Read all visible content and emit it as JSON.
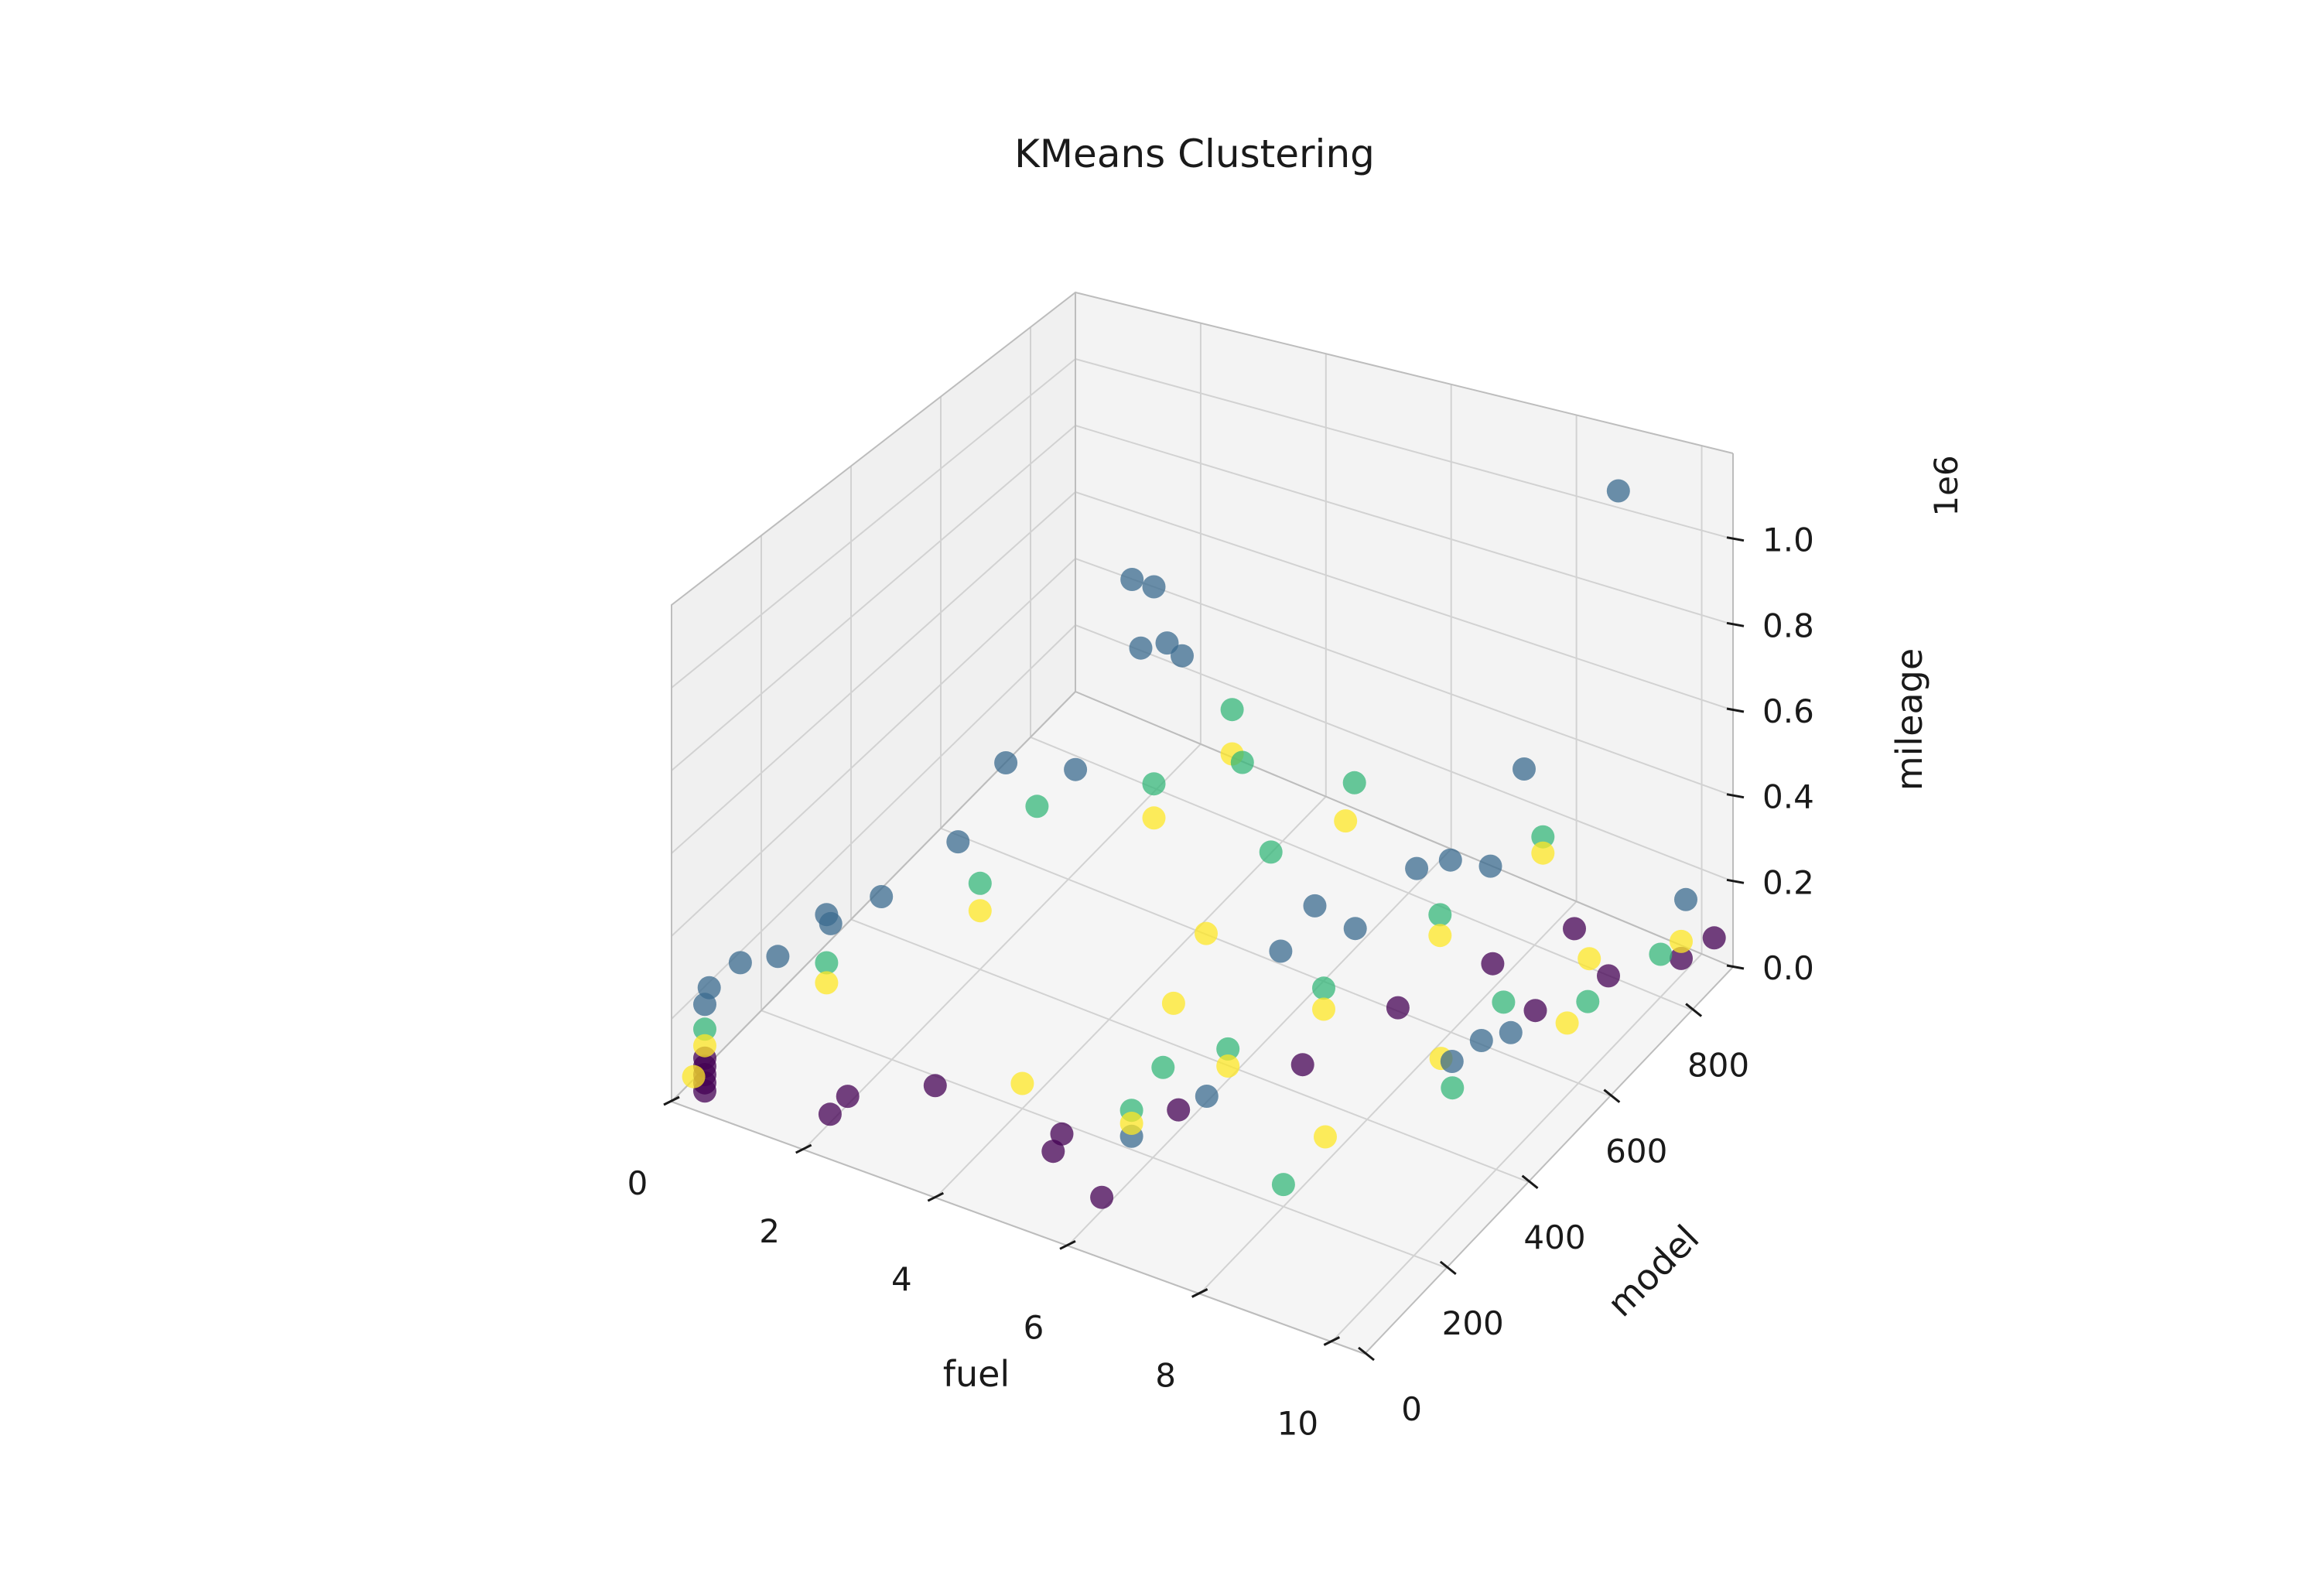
{
  "chart_data": {
    "type": "scatter",
    "projection": "3d",
    "title": "KMeans Clustering",
    "xlabel": "fuel",
    "ylabel": "model",
    "zlabel": "mileage",
    "z_offset_text": "1e6",
    "xlim": [
      0,
      10.5
    ],
    "ylim": [
      0,
      900
    ],
    "zlim": [
      0,
      1.2
    ],
    "xticks": [
      "0",
      "2",
      "4",
      "6",
      "8",
      "10"
    ],
    "yticks": [
      "0",
      "200",
      "400",
      "600",
      "800"
    ],
    "zticks": [
      "0.0",
      "0.2",
      "0.4",
      "0.6",
      "0.8",
      "1.0"
    ],
    "grid": true,
    "cluster_colors": [
      "#440154",
      "#3b6b8f",
      "#35b779",
      "#fde725"
    ],
    "series": [
      {
        "values": [
          [
            0.3,
            30,
            0.01
          ],
          [
            0.3,
            30,
            0.03
          ],
          [
            0.3,
            30,
            0.05
          ],
          [
            0.3,
            30,
            0.07
          ],
          [
            0.3,
            30,
            0.09
          ],
          [
            2,
            60,
            0.02
          ],
          [
            2,
            100,
            0.02
          ],
          [
            3,
            150,
            0.05
          ],
          [
            5,
            120,
            0.04
          ],
          [
            5,
            140,
            0.06
          ],
          [
            6,
            80,
            0.03
          ],
          [
            6,
            260,
            0.05
          ],
          [
            7,
            400,
            0.07
          ],
          [
            7.5,
            550,
            0.08
          ],
          [
            8,
            700,
            0.06
          ],
          [
            8.5,
            820,
            0.05
          ],
          [
            9.5,
            750,
            0.07
          ],
          [
            10,
            850,
            0.04
          ],
          [
            10.2,
            900,
            0.05
          ],
          [
            9,
            650,
            0.06
          ]
        ]
      },
      {
        "values": [
          [
            3,
            600,
            0.85
          ],
          [
            3,
            650,
            0.78
          ],
          [
            3,
            620,
            0.65
          ],
          [
            3,
            680,
            0.6
          ],
          [
            2.4,
            400,
            0.55
          ],
          [
            2,
            350,
            0.38
          ],
          [
            1.5,
            250,
            0.32
          ],
          [
            1,
            200,
            0.3
          ],
          [
            0.5,
            80,
            0.28
          ],
          [
            0.3,
            40,
            0.25
          ],
          [
            0.3,
            30,
            0.22
          ],
          [
            0.8,
            120,
            0.27
          ],
          [
            1.2,
            180,
            0.31
          ],
          [
            2.8,
            500,
            0.45
          ],
          [
            3.1,
            700,
            0.55
          ],
          [
            6,
            500,
            0.18
          ],
          [
            6.5,
            600,
            0.16
          ],
          [
            7,
            750,
            0.2
          ],
          [
            7.3,
            800,
            0.15
          ],
          [
            7.5,
            850,
            0.35
          ],
          [
            6.2,
            550,
            0.25
          ],
          [
            6.8,
            700,
            0.22
          ],
          [
            10.4,
            800,
            0.25
          ],
          [
            9,
            520,
            0.12
          ],
          [
            8.8,
            480,
            0.1
          ],
          [
            9.2,
            560,
            0.11
          ],
          [
            6,
            150,
            0.1
          ],
          [
            6.5,
            250,
            0.12
          ],
          [
            9,
            850,
            1.1
          ]
        ]
      },
      {
        "values": [
          [
            0.3,
            30,
            0.16
          ],
          [
            1,
            200,
            0.18
          ],
          [
            2,
            400,
            0.22
          ],
          [
            3,
            650,
            0.26
          ],
          [
            3.2,
            800,
            0.3
          ],
          [
            2.2,
            500,
            0.32
          ],
          [
            3.5,
            780,
            0.2
          ],
          [
            6,
            150,
            0.16
          ],
          [
            6.5,
            300,
            0.18
          ],
          [
            7,
            450,
            0.2
          ],
          [
            7.5,
            650,
            0.2
          ],
          [
            7.8,
            850,
            0.2
          ],
          [
            4.5,
            700,
            0.12
          ],
          [
            5.5,
            300,
            0.08
          ],
          [
            8.5,
            650,
            0.05
          ],
          [
            9.5,
            700,
            0.06
          ],
          [
            9,
            450,
            0.08
          ],
          [
            10,
            800,
            0.1
          ],
          [
            8,
            200,
            0.05
          ],
          [
            4.8,
            850,
            0.15
          ]
        ]
      },
      {
        "values": [
          [
            0.3,
            30,
            0.12
          ],
          [
            1,
            200,
            0.13
          ],
          [
            2,
            400,
            0.15
          ],
          [
            3,
            650,
            0.17
          ],
          [
            3.2,
            800,
            0.18
          ],
          [
            0.2,
            20,
            0.05
          ],
          [
            6,
            150,
            0.13
          ],
          [
            6.5,
            300,
            0.14
          ],
          [
            7,
            450,
            0.15
          ],
          [
            7.5,
            650,
            0.15
          ],
          [
            7.8,
            850,
            0.16
          ],
          [
            4,
            200,
            0.06
          ],
          [
            5,
            400,
            0.1
          ],
          [
            4.5,
            550,
            0.08
          ],
          [
            5,
            800,
            0.12
          ],
          [
            8,
            300,
            0.06
          ],
          [
            8.5,
            500,
            0.07
          ],
          [
            9.5,
            650,
            0.06
          ],
          [
            10,
            850,
            0.08
          ],
          [
            9,
            780,
            0.05
          ]
        ]
      }
    ]
  }
}
